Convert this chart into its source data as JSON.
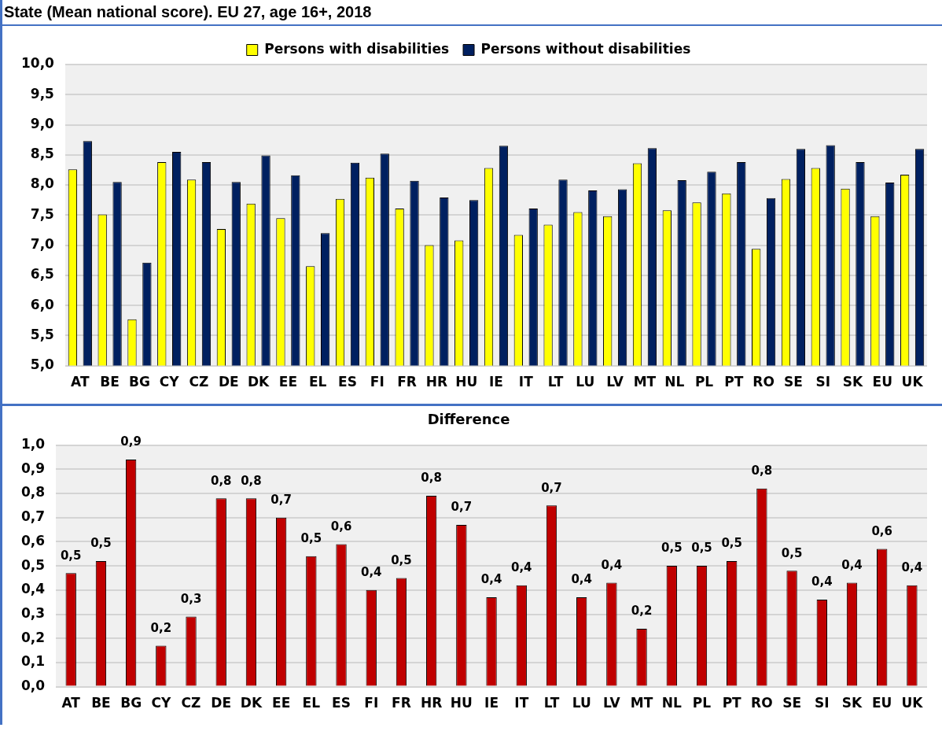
{
  "chart_data": [
    {
      "type": "bar",
      "title": "State (Mean national score). EU 27, age 16+, 2018",
      "categories": [
        "AT",
        "BE",
        "BG",
        "CY",
        "CZ",
        "DE",
        "DK",
        "EE",
        "EL",
        "ES",
        "FI",
        "FR",
        "HR",
        "HU",
        "IE",
        "IT",
        "LT",
        "LU",
        "LV",
        "MT",
        "NL",
        "PL",
        "PT",
        "RO",
        "SE",
        "SI",
        "SK",
        "EU",
        "UK"
      ],
      "series": [
        {
          "name": "Persons with disabilities",
          "color": "#ffff00",
          "values": [
            8.26,
            7.51,
            5.77,
            8.38,
            8.09,
            7.27,
            7.69,
            7.45,
            6.65,
            7.77,
            8.12,
            7.61,
            7.0,
            7.08,
            8.28,
            7.17,
            7.34,
            7.55,
            7.48,
            8.36,
            7.58,
            7.71,
            7.86,
            6.94,
            8.1,
            8.28,
            7.94,
            7.48,
            8.17
          ]
        },
        {
          "name": "Persons without disabilities",
          "color": "#002060",
          "values": [
            8.73,
            8.05,
            6.71,
            8.55,
            8.38,
            8.05,
            8.49,
            8.16,
            7.2,
            8.37,
            8.52,
            8.07,
            7.79,
            7.75,
            8.65,
            7.61,
            8.09,
            7.91,
            7.93,
            8.61,
            8.08,
            8.22,
            8.38,
            7.78,
            8.6,
            8.66,
            8.38,
            8.04,
            8.6
          ]
        }
      ],
      "ylim": [
        5,
        10
      ],
      "yticks": [
        {
          "value": 5,
          "label": "5,0"
        },
        {
          "value": 5.5,
          "label": "5,5"
        },
        {
          "value": 6,
          "label": "6,0"
        },
        {
          "value": 6.5,
          "label": "6,5"
        },
        {
          "value": 7,
          "label": "7,0"
        },
        {
          "value": 7.5,
          "label": "7,5"
        },
        {
          "value": 8,
          "label": "8,0"
        },
        {
          "value": 8.5,
          "label": "8,5"
        },
        {
          "value": 9,
          "label": "9,0"
        },
        {
          "value": 9.5,
          "label": "9,5"
        },
        {
          "value": 10,
          "label": "10,0"
        }
      ],
      "grid": "y",
      "legend": "top"
    },
    {
      "type": "bar",
      "title": "Difference",
      "categories": [
        "AT",
        "BE",
        "BG",
        "CY",
        "CZ",
        "DE",
        "DK",
        "EE",
        "EL",
        "ES",
        "FI",
        "FR",
        "HR",
        "HU",
        "IE",
        "IT",
        "LT",
        "LU",
        "LV",
        "MT",
        "NL",
        "PL",
        "PT",
        "RO",
        "SE",
        "SI",
        "SK",
        "EU",
        "UK"
      ],
      "series": [
        {
          "color": "#c00000",
          "values": [
            0.47,
            0.52,
            0.94,
            0.17,
            0.29,
            0.78,
            0.78,
            0.7,
            0.54,
            0.59,
            0.4,
            0.45,
            0.79,
            0.67,
            0.37,
            0.42,
            0.75,
            0.37,
            0.43,
            0.24,
            0.5,
            0.5,
            0.52,
            0.82,
            0.48,
            0.36,
            0.43,
            0.57,
            0.42
          ],
          "value_labels": [
            "0,5",
            "0,5",
            "0,9",
            "0,2",
            "0,3",
            "0,8",
            "0,8",
            "0,7",
            "0,5",
            "0,6",
            "0,4",
            "0,5",
            "0,8",
            "0,7",
            "0,4",
            "0,4",
            "0,7",
            "0,4",
            "0,4",
            "0,2",
            "0,5",
            "0,5",
            "0,5",
            "0,8",
            "0,5",
            "0,4",
            "0,4",
            "0,6",
            "0,4"
          ]
        }
      ],
      "ylim": [
        0,
        1
      ],
      "yticks": [
        {
          "value": 0,
          "label": "0,0"
        },
        {
          "value": 0.1,
          "label": "0,1"
        },
        {
          "value": 0.2,
          "label": "0,2"
        },
        {
          "value": 0.3,
          "label": "0,3"
        },
        {
          "value": 0.4,
          "label": "0,4"
        },
        {
          "value": 0.5,
          "label": "0,5"
        },
        {
          "value": 0.6,
          "label": "0,6"
        },
        {
          "value": 0.7,
          "label": "0,7"
        },
        {
          "value": 0.8,
          "label": "0,8"
        },
        {
          "value": 0.9,
          "label": "0,9"
        },
        {
          "value": 1,
          "label": "1,0"
        }
      ],
      "grid": "y"
    }
  ]
}
